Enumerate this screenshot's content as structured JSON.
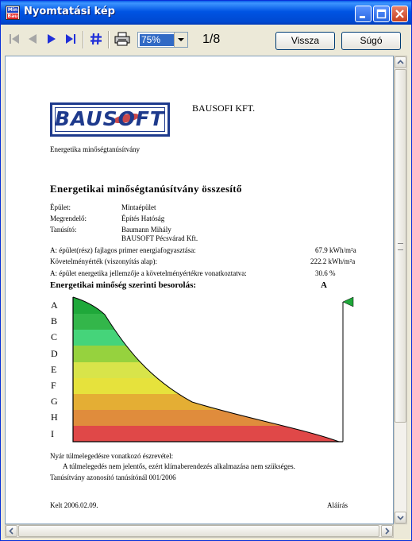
{
  "window": {
    "title": "Nyomtatási kép",
    "app_icon_top": "Min",
    "app_icon_bottom": "Bau"
  },
  "toolbar": {
    "zoom_value": "75%",
    "page_indicator": "1/8",
    "back_label": "Vissza",
    "help_label": "Súgó"
  },
  "doc": {
    "logo_text": "BAUSOFT",
    "company": "BAUSOFI KFT.",
    "subtitle": "Energetika minőségtanúsítvány",
    "heading": "Energetikai minőségtanúsítvány összesítő",
    "info": [
      {
        "label": "Épület:",
        "value": "Mintaépület"
      },
      {
        "label": "Megrendelő:",
        "value": "Építés Hatóság"
      },
      {
        "label": "Tanúsító:",
        "value": "Baumann Mihály"
      },
      {
        "label": "",
        "value": "BAUSOFT Pécsvárad Kft."
      }
    ],
    "metrics": [
      {
        "label": "A: épület(rész) fajlagos primer energiafogyasztása:",
        "value": "67.9 kWh/m²a"
      },
      {
        "label": "Követelményérték (viszonyítás alap):",
        "value": "222.2 kWh/m²a"
      },
      {
        "label": "A: épület energetika jellemzője a követelményértékre vonatkoztatva:",
        "value": "30.6 %"
      }
    ],
    "rating_heading": "Energetikai minőség szerinti besorolás:",
    "rating_value": "A",
    "class_labels": [
      "A",
      "B",
      "C",
      "D",
      "E",
      "F",
      "G",
      "H",
      "I"
    ],
    "band_colors": [
      "#1fa83a",
      "#33b64a",
      "#45d47a",
      "#96d23e",
      "#d8e44a",
      "#e6e23c",
      "#e4ae34",
      "#e08c3c",
      "#e04848"
    ],
    "summer_heading": "Nyár túlmelegedésre vonatkozó észrevétel:",
    "summer_text": "A túlmelegedés nem jelentős, ezért klímaberendezés alkalmazása nem szükséges.",
    "cert_id": "Tanúsítvány azonosító tanúsítónál 001/2006",
    "date": "Kelt  2006.02.09.",
    "signature": "Aláírás"
  }
}
